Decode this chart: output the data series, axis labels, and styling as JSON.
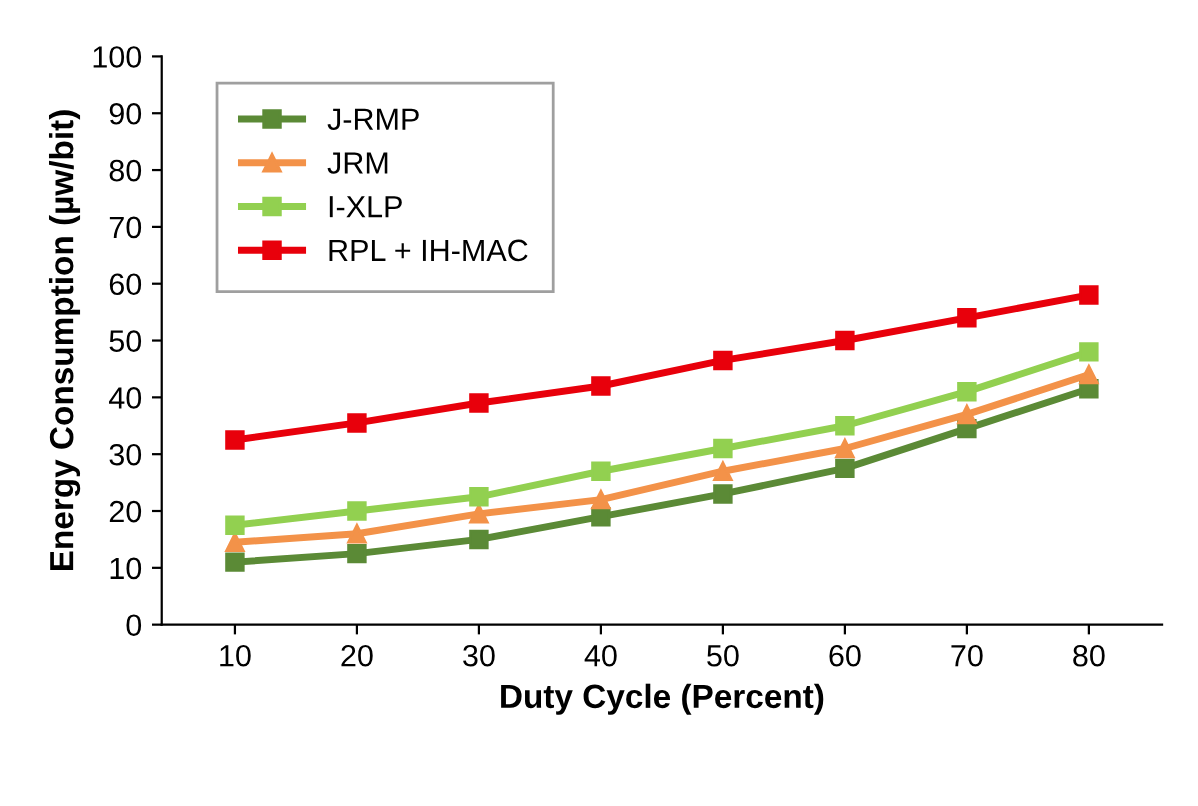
{
  "chart_data": {
    "type": "line",
    "xlabel": "Duty Cycle (Percent)",
    "ylabel": "Energy Consumption (µw/bit)",
    "categories": [
      "10",
      "20",
      "30",
      "40",
      "50",
      "60",
      "70",
      "80"
    ],
    "ylim": [
      0,
      100
    ],
    "yticks": [
      0,
      10,
      20,
      30,
      40,
      50,
      60,
      70,
      80,
      90,
      100
    ],
    "grid": false,
    "legend": "top left",
    "series": [
      {
        "name": "J-RMP",
        "color": "#5b8a36",
        "marker": "square",
        "values": [
          11,
          12.5,
          15,
          19,
          23,
          27.5,
          34.5,
          41.5
        ]
      },
      {
        "name": "JRM",
        "color": "#f39249",
        "marker": "triangle",
        "values": [
          14.5,
          16,
          19.5,
          22,
          27,
          31,
          37,
          44
        ]
      },
      {
        "name": "I-XLP",
        "color": "#92d050",
        "marker": "square",
        "values": [
          17.5,
          20,
          22.5,
          27,
          31,
          35,
          41,
          48
        ]
      },
      {
        "name": "RPL + IH-MAC",
        "color": "#e8000b",
        "marker": "square",
        "values": [
          32.5,
          35.5,
          39,
          42,
          46.5,
          50,
          54,
          58
        ]
      }
    ]
  }
}
